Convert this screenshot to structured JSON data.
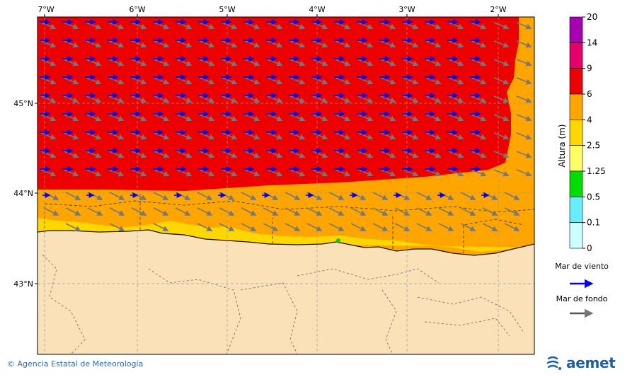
{
  "map": {
    "lon_labels": [
      "7°W",
      "6°W",
      "5°W",
      "4°W",
      "3°W",
      "2°W"
    ],
    "lat_labels": [
      "45°N",
      "44°N",
      "43°N"
    ],
    "colors": {
      "land": "#fbe1b8",
      "sea_6_9": "#ee0000",
      "sea_4_6": "#ffa500",
      "sea_2_5_4": "#ffd700",
      "wind_arrow": "#0000ee",
      "swell_arrow": "#777777",
      "grid": "#999999",
      "border": "#555555",
      "coast": "#111111"
    }
  },
  "legend": {
    "title": "Altura (m)",
    "levels": [
      "20",
      "14",
      "9",
      "6",
      "4",
      "2.5",
      "1.25",
      "0.5",
      "0.1",
      "0"
    ],
    "colors": [
      "#a700b3",
      "#e6006b",
      "#ee0000",
      "#ffa500",
      "#ffd700",
      "#ffff66",
      "#00dd00",
      "#66eeff",
      "#ccffff"
    ],
    "wind_label": "Mar de viento",
    "swell_label": "Mar de fondo"
  },
  "footer": {
    "copyright": "© Agencia Estatal de Meteorología",
    "logo_text": "aemet"
  }
}
